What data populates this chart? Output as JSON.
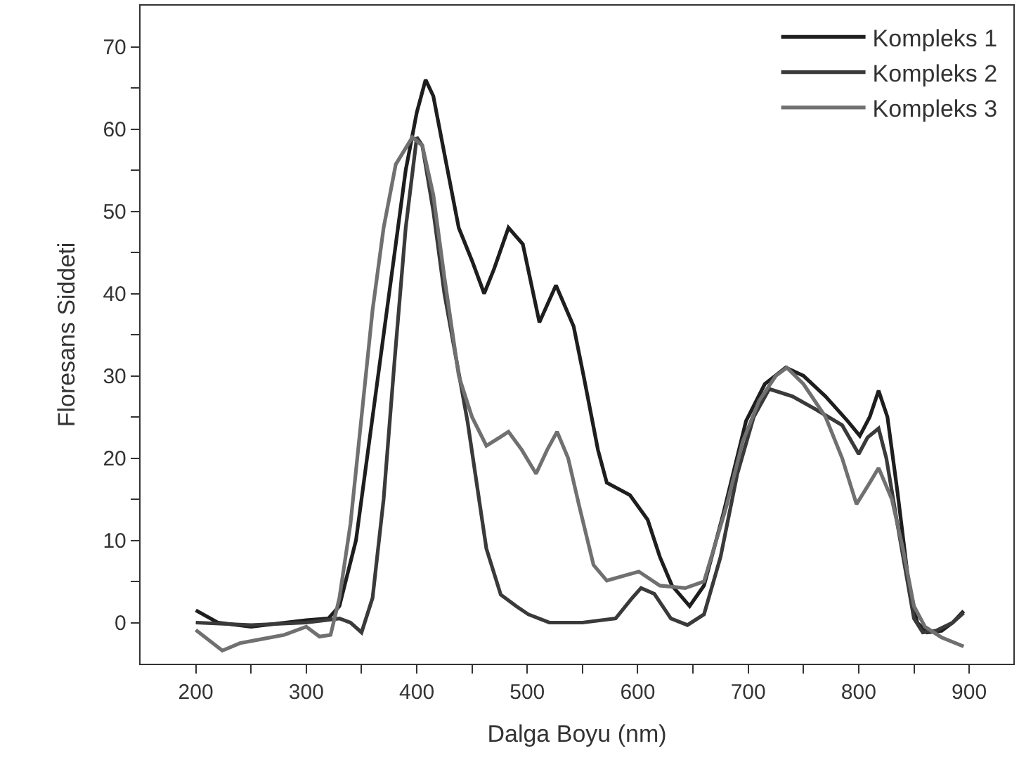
{
  "chart_data": {
    "type": "line",
    "xlabel": "Dalga Boyu (nm)",
    "ylabel": "Floresans Siddeti",
    "xlim": [
      150,
      940
    ],
    "ylim": [
      -5,
      75
    ],
    "xticks": [
      200,
      {
        "value": 250,
        "label": null
      },
      300,
      {
        "value": 350,
        "label": null
      },
      400,
      {
        "value": 450,
        "label": null
      },
      500,
      {
        "value": 550,
        "label": null
      },
      600,
      {
        "value": 650,
        "label": null
      },
      700,
      {
        "value": 750,
        "label": null
      },
      800,
      {
        "value": 850,
        "label": null
      },
      900
    ],
    "yticks": [
      0,
      {
        "value": 5,
        "label": null
      },
      10,
      {
        "value": 15,
        "label": null
      },
      20,
      {
        "value": 25,
        "label": null
      },
      30,
      {
        "value": 35,
        "label": null
      },
      40,
      {
        "value": 45,
        "label": null
      },
      50,
      {
        "value": 55,
        "label": null
      },
      60,
      {
        "value": 65,
        "label": null
      },
      70
    ],
    "legend": "top right",
    "marker": "none",
    "line_style": "solid",
    "series": [
      {
        "name": "Kompleks 1",
        "color": "#1e1e1e",
        "x": [
          200,
          220,
          250,
          300,
          320,
          330,
          345,
          360,
          375,
          390,
          400,
          408,
          415,
          425,
          438,
          450,
          461,
          470,
          483,
          496,
          511,
          526,
          542,
          551,
          564,
          572,
          593,
          609,
          620,
          631,
          647,
          660,
          677,
          698,
          715,
          734,
          750,
          770,
          790,
          801,
          810,
          818,
          826,
          835,
          845,
          853,
          862,
          875,
          885,
          895
        ],
        "values": [
          1.5,
          0,
          -0.5,
          0.3,
          0.5,
          2,
          10,
          25,
          40,
          55,
          62,
          66,
          64,
          57,
          48,
          44,
          40,
          43,
          48,
          46,
          36.5,
          41,
          36,
          30,
          21,
          17,
          15.5,
          12.5,
          8,
          4.5,
          2,
          4.5,
          13,
          24.5,
          29,
          31,
          30,
          27.5,
          24.5,
          22.7,
          25,
          28.2,
          25,
          16,
          5,
          0,
          -1.2,
          -1,
          0,
          1.4
        ]
      },
      {
        "name": "Kompleks 2",
        "color": "#3a3a3a",
        "x": [
          200,
          250,
          300,
          330,
          340,
          350,
          360,
          370,
          380,
          390,
          400,
          405,
          415,
          425,
          446,
          463,
          476,
          490,
          501,
          520,
          550,
          580,
          595,
          603,
          615,
          630,
          645,
          660,
          675,
          690,
          705,
          719,
          740,
          760,
          785,
          800,
          808,
          818,
          825,
          835,
          850,
          858,
          870,
          885,
          895
        ],
        "values": [
          0,
          -0.3,
          0,
          0.5,
          0,
          -1.2,
          3,
          15,
          32,
          48,
          59,
          58,
          50,
          40,
          24.4,
          9,
          3.4,
          2,
          1,
          0,
          0,
          0.5,
          3,
          4.2,
          3.5,
          0.5,
          -0.3,
          1,
          8,
          18,
          25,
          28.4,
          27.5,
          26,
          24,
          20.5,
          22.5,
          23.6,
          20,
          12,
          0.5,
          -1.2,
          -1,
          0,
          1.2
        ]
      },
      {
        "name": "Kompleks 3",
        "color": "#707070",
        "x": [
          200,
          224,
          240,
          260,
          280,
          300,
          312,
          322,
          330,
          340,
          350,
          360,
          370,
          381,
          396,
          405,
          415,
          425,
          438,
          450,
          463,
          475,
          483,
          495,
          508,
          518,
          527,
          537,
          547,
          560,
          572,
          590,
          601,
          620,
          643,
          660,
          680,
          695,
          710,
          725,
          735,
          750,
          770,
          785,
          798,
          810,
          818,
          830,
          840,
          850,
          860,
          875,
          895
        ],
        "values": [
          -0.9,
          -3.4,
          -2.5,
          -2,
          -1.5,
          -0.5,
          -1.7,
          -1.5,
          3,
          12,
          25,
          38,
          48,
          55.7,
          59,
          58,
          52,
          42,
          30,
          25,
          21.5,
          22.5,
          23.2,
          21,
          18.1,
          21,
          23.2,
          20,
          14.2,
          7,
          5.1,
          5.8,
          6.2,
          4.5,
          4.2,
          5,
          14,
          22,
          27,
          30,
          31,
          29,
          25,
          20,
          14.4,
          17,
          18.8,
          15,
          9,
          2,
          -0.5,
          -1.8,
          -2.9
        ]
      }
    ]
  }
}
